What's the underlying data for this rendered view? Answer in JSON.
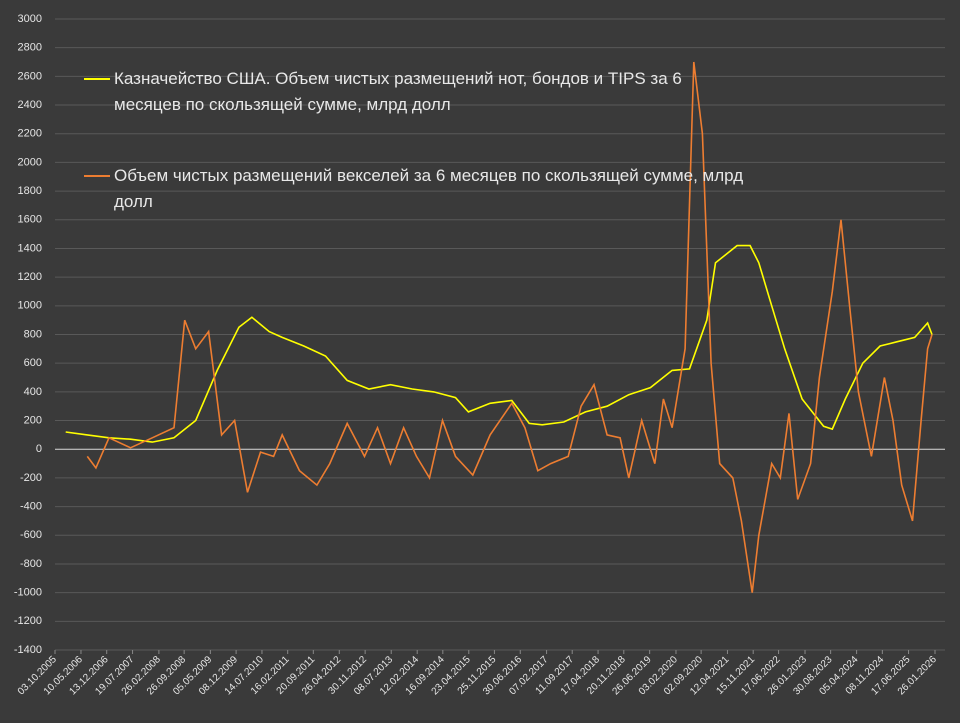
{
  "chart_data": {
    "type": "line",
    "ylim": [
      -1400,
      3000
    ],
    "yticks": [
      -1400,
      -1200,
      -1000,
      -800,
      -600,
      -400,
      -200,
      0,
      200,
      400,
      600,
      800,
      1000,
      1200,
      1400,
      1600,
      1800,
      2000,
      2200,
      2400,
      2600,
      2800,
      3000
    ],
    "xlim": [
      "03.10.2005",
      "26.01.2026"
    ],
    "xticks": [
      "03.10.2005",
      "10.05.2006",
      "13.12.2006",
      "19.07.2007",
      "26.02.2008",
      "26.09.2008",
      "05.05.2009",
      "08.12.2009",
      "14.07.2010",
      "16.02.2011",
      "20.09.2011",
      "26.04.2012",
      "30.11.2012",
      "08.07.2013",
      "12.02.2014",
      "16.09.2014",
      "23.04.2015",
      "25.11.2015",
      "30.06.2016",
      "07.02.2017",
      "11.09.2017",
      "17.04.2018",
      "20.11.2018",
      "26.06.2019",
      "03.02.2020",
      "02.09.2020",
      "12.04.2021",
      "15.11.2021",
      "17.06.2022",
      "26.01.2023",
      "30.08.2023",
      "05.04.2024",
      "08.11.2024",
      "17.06.2025",
      "26.01.2026"
    ],
    "grid": true,
    "legend": "upper-left",
    "series": [
      {
        "name": "Казначейство США. Объем чистых размещений нот, бондов и TIPS за 6 месяцев по скользящей сумме, млрд долл",
        "color": "#ffff00",
        "x": [
          "01.01.2006",
          "02.07.2006",
          "01.01.2007",
          "02.07.2007",
          "01.01.2008",
          "02.07.2008",
          "01.01.2009",
          "02.07.2009",
          "01.01.2010",
          "20.04.2010",
          "13.09.2010",
          "01.01.2011",
          "02.07.2011",
          "01.01.2012",
          "02.07.2012",
          "01.01.2013",
          "02.07.2013",
          "01.01.2014",
          "02.07.2014",
          "01.01.2015",
          "20.04.2015",
          "20.10.2015",
          "20.04.2016",
          "13.09.2016",
          "01.01.2017",
          "02.07.2017",
          "01.01.2018",
          "02.07.2018",
          "01.01.2019",
          "02.07.2019",
          "01.01.2020",
          "27.05.2020",
          "20.10.2020",
          "01.01.2021",
          "02.07.2021",
          "20.10.2021",
          "01.01.2022",
          "20.04.2022",
          "08.08.2022",
          "01.01.2023",
          "02.07.2023",
          "13.09.2023",
          "01.01.2024",
          "27.05.2024",
          "20.10.2024",
          "14.03.2025",
          "08.08.2025",
          "25.11.2025",
          "01.01.2026"
        ],
        "values": [
          120,
          100,
          80,
          70,
          50,
          80,
          200,
          550,
          850,
          920,
          820,
          780,
          720,
          650,
          480,
          420,
          450,
          420,
          400,
          360,
          260,
          320,
          340,
          180,
          170,
          190,
          260,
          300,
          380,
          430,
          550,
          560,
          900,
          1300,
          1420,
          1420,
          1300,
          1000,
          700,
          350,
          160,
          140,
          350,
          600,
          720,
          750,
          780,
          880,
          800
        ]
      },
      {
        "name": "Объем чистых размещений векселей за 6 месяцев по скользящей сумме, млрд долл",
        "color": "#ed7d31",
        "x": [
          "02.07.2006",
          "13.09.2006",
          "01.01.2007",
          "02.07.2007",
          "01.01.2008",
          "02.07.2008",
          "01.10.2008",
          "01.01.2009",
          "20.04.2009",
          "08.08.2009",
          "25.11.2009",
          "14.03.2010",
          "02.07.2010",
          "20.10.2010",
          "01.01.2011",
          "27.05.2011",
          "20.10.2011",
          "06.02.2012",
          "02.07.2012",
          "25.11.2012",
          "14.03.2013",
          "02.07.2013",
          "20.10.2013",
          "06.02.2014",
          "27.05.2014",
          "13.09.2014",
          "01.01.2015",
          "27.05.2015",
          "20.10.2015",
          "20.04.2016",
          "08.08.2016",
          "25.11.2016",
          "14.03.2017",
          "08.08.2017",
          "25.11.2017",
          "14.03.2018",
          "02.07.2018",
          "20.10.2018",
          "01.01.2019",
          "20.04.2019",
          "08.08.2019",
          "20.10.2019",
          "01.01.2020",
          "20.04.2020",
          "02.07.2020",
          "13.09.2020",
          "25.11.2020",
          "06.02.2021",
          "27.05.2021",
          "08.08.2021",
          "07.11.2021",
          "01.01.2022",
          "20.04.2022",
          "02.07.2022",
          "13.09.2022",
          "25.11.2022",
          "14.03.2023",
          "27.05.2023",
          "13.09.2023",
          "25.11.2023",
          "06.02.2024",
          "20.04.2024",
          "08.08.2024",
          "25.11.2024",
          "06.02.2025",
          "20.04.2025",
          "20.07.2025",
          "01.10.2025",
          "25.11.2025",
          "01.01.2026"
        ],
        "values": [
          -50,
          -130,
          80,
          10,
          80,
          150,
          900,
          700,
          820,
          100,
          200,
          -300,
          -20,
          -50,
          100,
          -150,
          -250,
          -100,
          180,
          -50,
          150,
          -100,
          150,
          -50,
          -200,
          200,
          -50,
          -180,
          100,
          320,
          150,
          -150,
          -100,
          -50,
          300,
          450,
          100,
          80,
          -200,
          200,
          -100,
          350,
          150,
          700,
          2700,
          2200,
          600,
          -100,
          -200,
          -500,
          -1000,
          -600,
          -100,
          -200,
          250,
          -350,
          -100,
          500,
          1100,
          1600,
          1000,
          400,
          -50,
          500,
          200,
          -250,
          -500,
          200,
          700,
          800
        ]
      }
    ]
  }
}
